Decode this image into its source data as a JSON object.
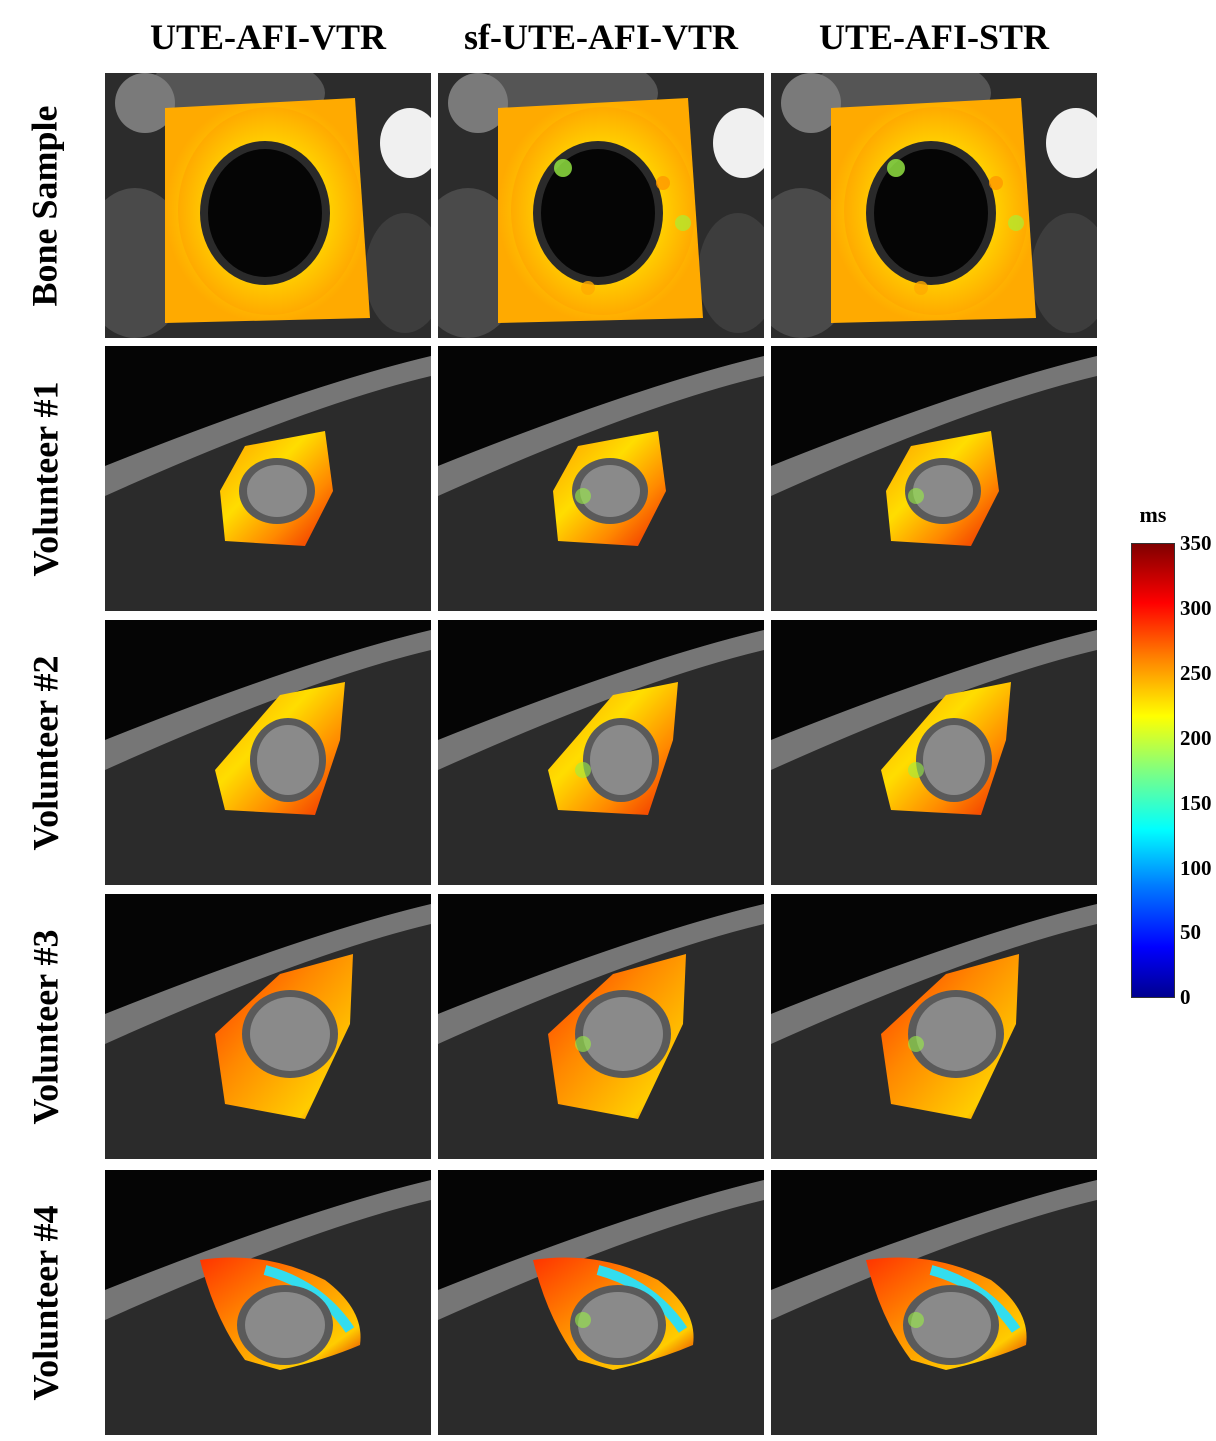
{
  "columns": [
    "UTE-AFI-VTR",
    "sf-UTE-AFI-VTR",
    "UTE-AFI-STR"
  ],
  "rows": [
    "Bone Sample",
    "Volunteer #1",
    "Volunteer #2",
    "Volunteer #3",
    "Volunteer #4"
  ],
  "colorbar": {
    "unit": "ms",
    "ticks": [
      "350",
      "300",
      "250",
      "200",
      "150",
      "100",
      "50",
      "0"
    ],
    "colormap": "jet",
    "range": [
      0,
      350
    ]
  }
}
